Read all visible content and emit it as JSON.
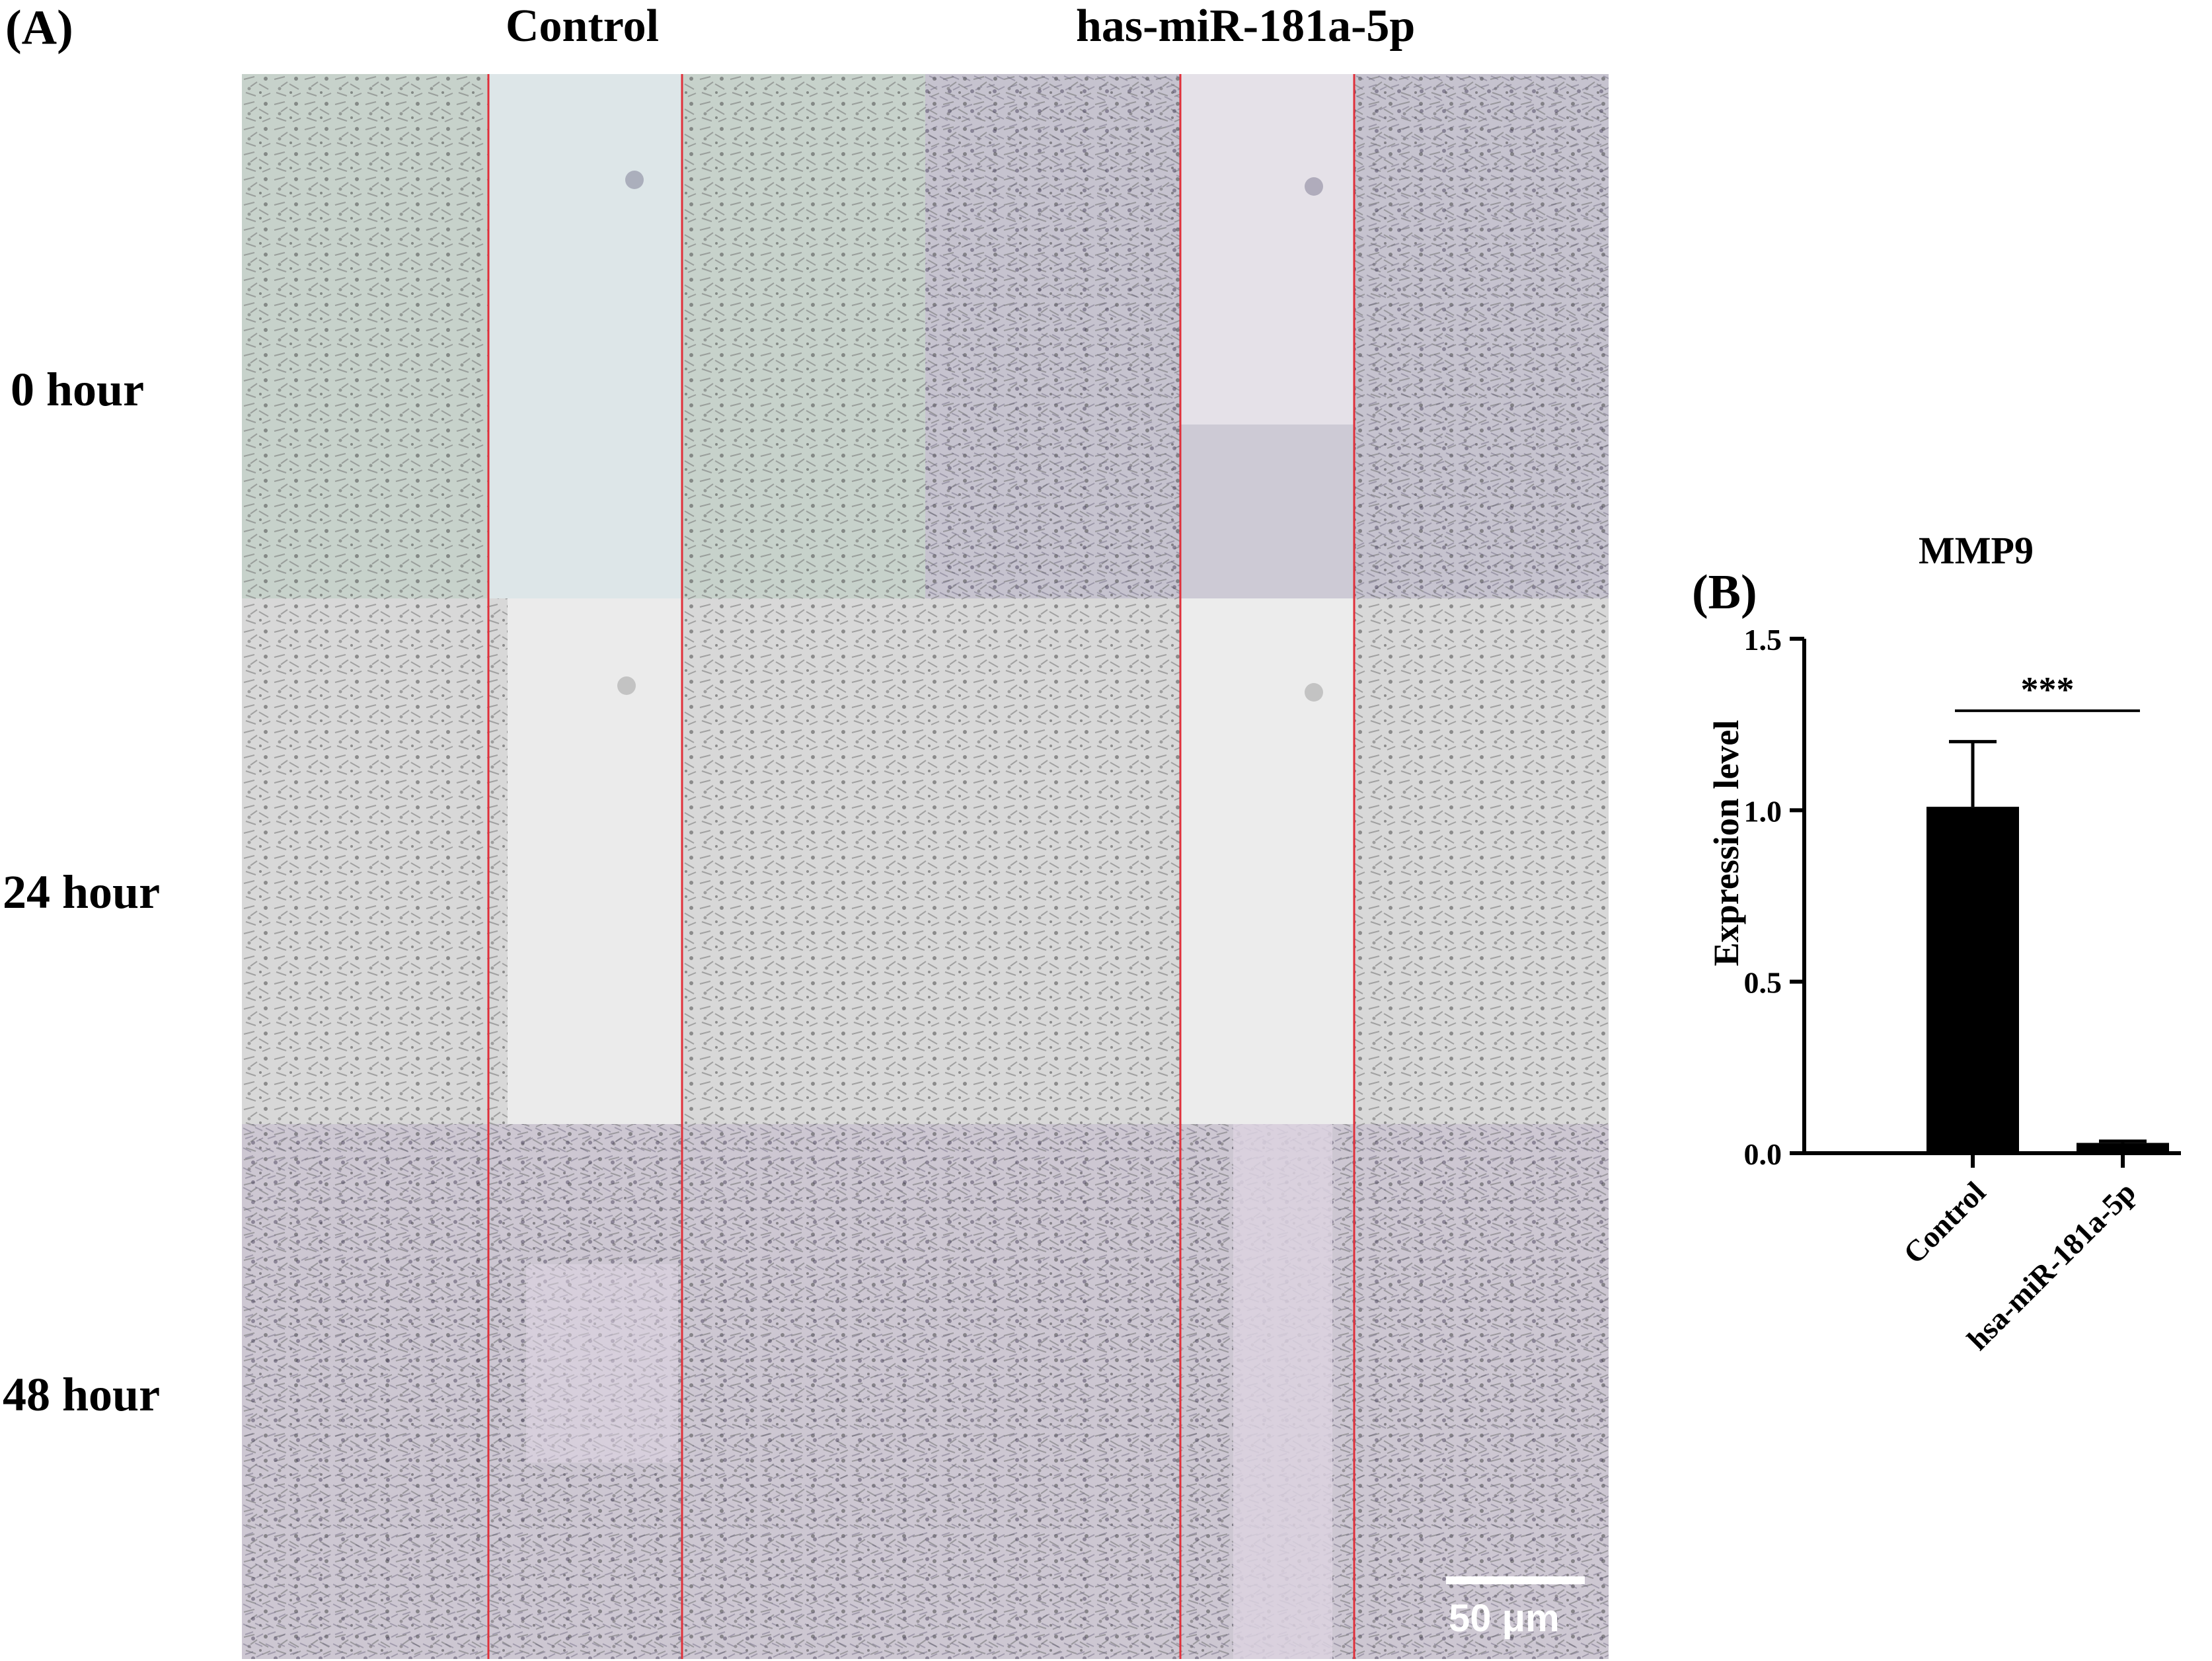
{
  "figure": {
    "panel_a": {
      "label": "(A)",
      "columns": [
        "Control",
        "has-miR-181a-5p"
      ],
      "rows": [
        "0 hour",
        "24 hour",
        "48 hour"
      ],
      "scale_bar_text": "50 μm",
      "wound_line_color": "#e0303a"
    },
    "panel_b": {
      "label": "(B)"
    }
  },
  "chart_data": {
    "type": "bar",
    "title": "MMP9",
    "ylabel": "Expression level",
    "xlabel": "",
    "categories": [
      "Control",
      "hsa-miR-181a-5p"
    ],
    "values": [
      1.01,
      0.03
    ],
    "errors": [
      0.19,
      0.005
    ],
    "ylim": [
      0,
      1.5
    ],
    "yticks": [
      "0.0",
      "0.5",
      "1.0",
      "1.5"
    ],
    "significance": "***",
    "bar_color": "#000000"
  }
}
